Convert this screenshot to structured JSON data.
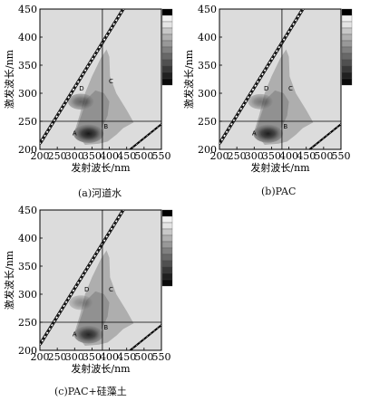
{
  "chart_data": [
    {
      "type": "heatmap",
      "panel_id": "a",
      "caption": "(a)河道水",
      "xlabel": "发射波长/nm",
      "ylabel": "激发波长/nm",
      "xlim": [
        200,
        550
      ],
      "ylim": [
        200,
        450
      ],
      "xticks": [
        200,
        250,
        300,
        350,
        400,
        450,
        500,
        550
      ],
      "yticks": [
        200,
        250,
        300,
        350,
        400,
        450
      ],
      "vline_x": 380,
      "hline_y": 250,
      "region_labels": [
        {
          "text": "A",
          "x": 300,
          "y": 225
        },
        {
          "text": "B",
          "x": 390,
          "y": 237
        },
        {
          "text": "C",
          "x": 405,
          "y": 318
        },
        {
          "text": "D",
          "x": 320,
          "y": 305
        }
      ],
      "peaks": [
        {
          "x": 340,
          "y": 228,
          "intensity": 0.95
        },
        {
          "x": 318,
          "y": 285,
          "intensity": 0.6
        }
      ],
      "legend_position": "top-right"
    },
    {
      "type": "heatmap",
      "panel_id": "b",
      "caption": "(b)PAC",
      "xlabel": "发射波长/nm",
      "ylabel": "激发波长/nm",
      "xlim": [
        200,
        550
      ],
      "ylim": [
        200,
        450
      ],
      "xticks": [
        200,
        250,
        300,
        350,
        400,
        450,
        500,
        550
      ],
      "yticks": [
        200,
        250,
        300,
        350,
        400,
        450
      ],
      "vline_x": 380,
      "hline_y": 250,
      "region_labels": [
        {
          "text": "A",
          "x": 300,
          "y": 225
        },
        {
          "text": "B",
          "x": 390,
          "y": 237
        },
        {
          "text": "C",
          "x": 405,
          "y": 305
        },
        {
          "text": "D",
          "x": 335,
          "y": 305
        }
      ],
      "peaks": [
        {
          "x": 340,
          "y": 228,
          "intensity": 0.9
        },
        {
          "x": 318,
          "y": 285,
          "intensity": 0.5
        }
      ],
      "legend_position": "top-right"
    },
    {
      "type": "heatmap",
      "panel_id": "c",
      "caption": "(c)PAC+硅藻土",
      "xlabel": "发射波长/nm",
      "ylabel": "激发波长/nm",
      "xlim": [
        200,
        550
      ],
      "ylim": [
        200,
        450
      ],
      "xticks": [
        200,
        250,
        300,
        350,
        400,
        450,
        500,
        550
      ],
      "yticks": [
        200,
        250,
        300,
        350,
        400,
        450
      ],
      "vline_x": 380,
      "hline_y": 250,
      "region_labels": [
        {
          "text": "A",
          "x": 300,
          "y": 225
        },
        {
          "text": "B",
          "x": 390,
          "y": 237
        },
        {
          "text": "C",
          "x": 405,
          "y": 305
        },
        {
          "text": "D",
          "x": 335,
          "y": 305
        }
      ],
      "peaks": [
        {
          "x": 340,
          "y": 228,
          "intensity": 0.85
        },
        {
          "x": 318,
          "y": 285,
          "intensity": 0.4
        }
      ],
      "legend_position": "top-right"
    }
  ]
}
